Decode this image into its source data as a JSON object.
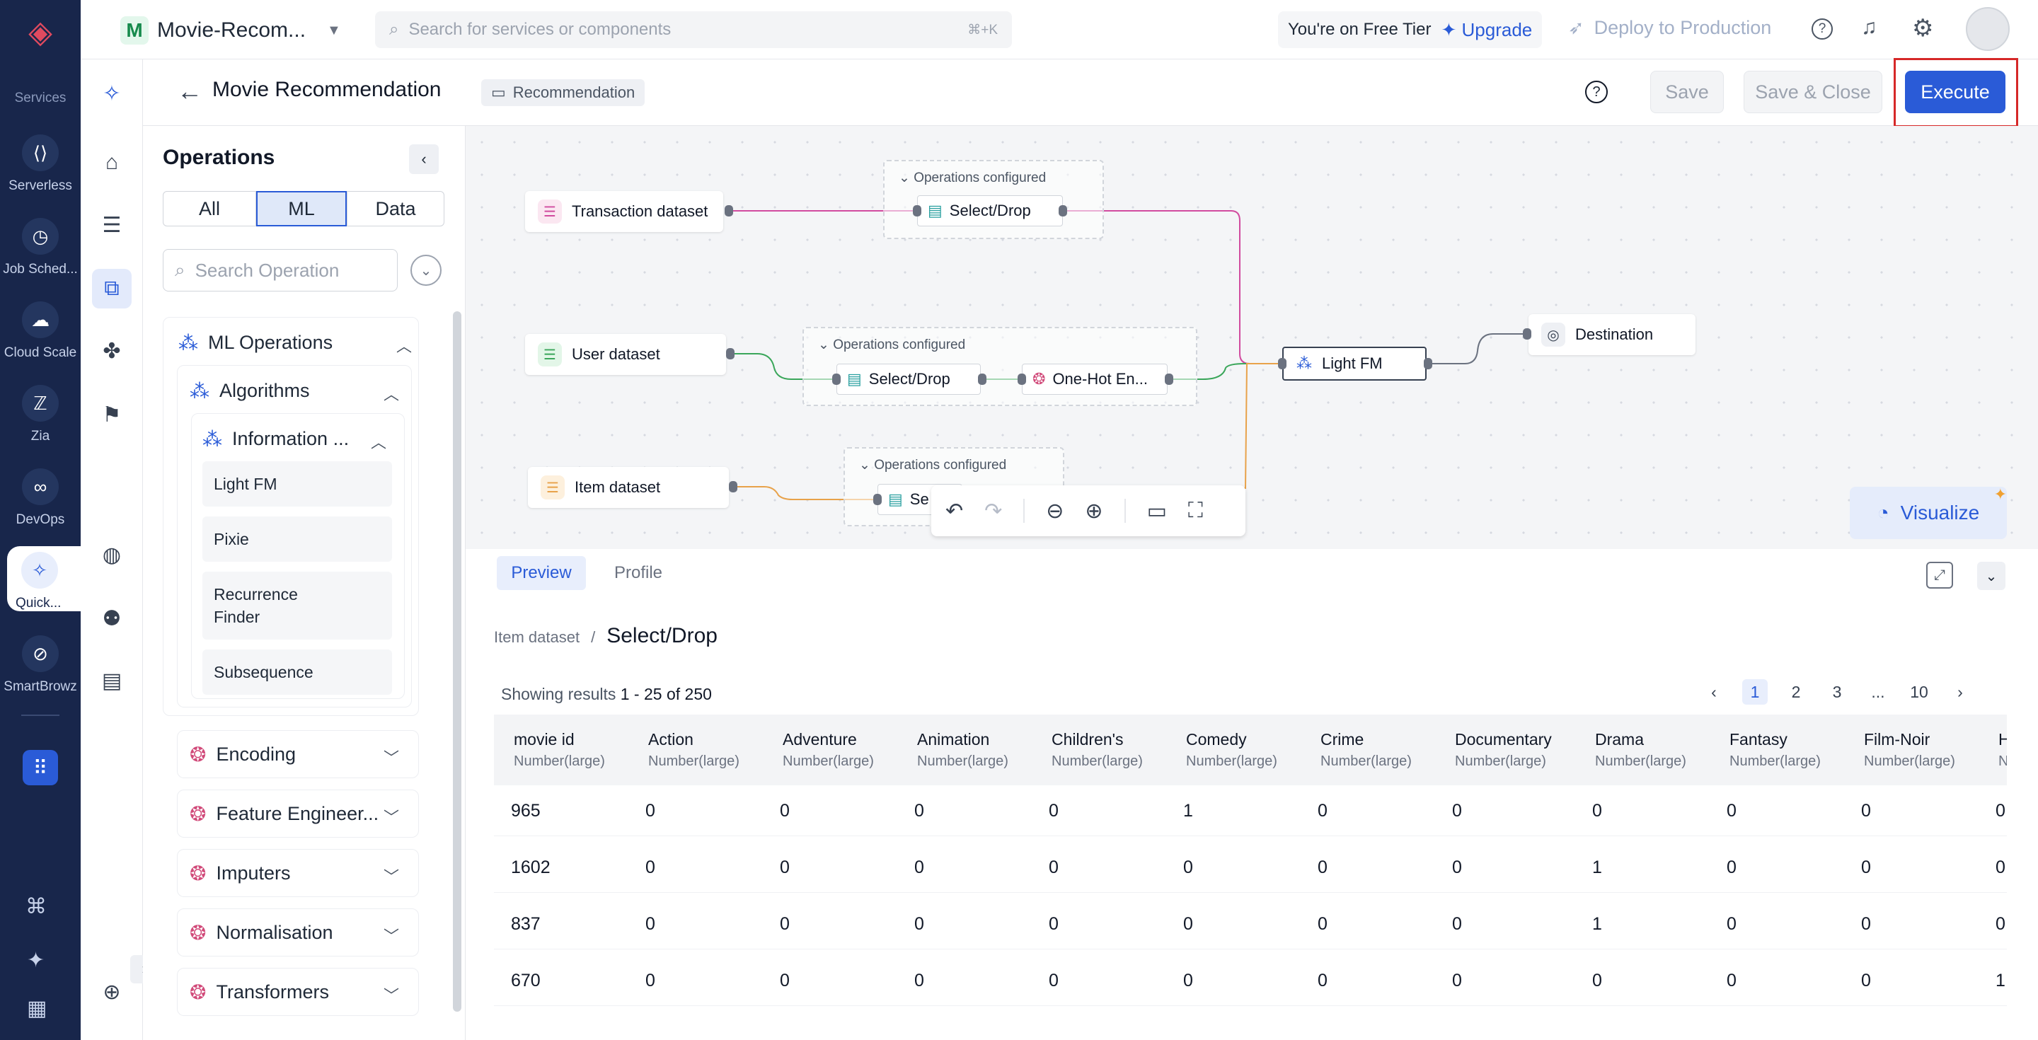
{
  "rail": {
    "section_label": "Services",
    "items": [
      {
        "label": "Serverless",
        "icon": "serverless-icon",
        "glyph": "⟨⟩"
      },
      {
        "label": "Job Sched...",
        "icon": "job-scheduler-icon",
        "glyph": "◷"
      },
      {
        "label": "Cloud Scale",
        "icon": "cloud-scale-icon",
        "glyph": "☁"
      },
      {
        "label": "Zia",
        "icon": "zia-icon",
        "glyph": "ℤ"
      },
      {
        "label": "DevOps",
        "icon": "devops-icon",
        "glyph": "∞"
      },
      {
        "label": "Quick...",
        "icon": "quickml-icon",
        "glyph": "✧"
      },
      {
        "label": "SmartBrowz",
        "icon": "smartbrowz-icon",
        "glyph": "⊘"
      }
    ]
  },
  "topbar": {
    "project_badge": "M",
    "project_name": "Movie-Recom...",
    "search_placeholder": "Search for services or components",
    "search_shortcut": "⌘+K",
    "tier_text": "You're on Free Tier",
    "upgrade_label": "Upgrade",
    "deploy_label": "Deploy to Production"
  },
  "header": {
    "title": "Movie Recommendation",
    "chip": "Recommendation",
    "save": "Save",
    "save_close": "Save & Close",
    "execute": "Execute"
  },
  "operations": {
    "title": "Operations",
    "segments": [
      "All",
      "ML",
      "Data"
    ],
    "search_placeholder": "Search Operation",
    "ml_operations": "ML Operations",
    "algorithms": "Algorithms",
    "information": "Information ...",
    "leaves": [
      "Light FM",
      "Pixie",
      "Recurrence Finder",
      "Subsequence"
    ],
    "groups": [
      "Encoding",
      "Feature Engineer...",
      "Imputers",
      "Normalisation",
      "Transformers"
    ]
  },
  "canvas": {
    "datasets": [
      "Transaction dataset",
      "User dataset",
      "Item dataset"
    ],
    "ops_configured": "Operations configured",
    "select_drop": "Select/Drop",
    "select_drop_short": "Se",
    "one_hot": "One-Hot En...",
    "light_fm": "Light FM",
    "destination": "Destination",
    "visualize": "Visualize",
    "colors": {
      "transaction": "#d14b9f",
      "user": "#3aa65a",
      "item": "#e8a24a",
      "output": "#6b7280"
    }
  },
  "preview": {
    "tabs": [
      "Preview",
      "Profile"
    ],
    "crumb_parent": "Item dataset",
    "crumb_sep": "/",
    "crumb_current": "Select/Drop",
    "results_prefix": "Showing results",
    "results_range": "1 - 25 of 250",
    "pages": [
      "1",
      "2",
      "3",
      "...",
      "10"
    ],
    "columns": [
      {
        "name": "movie id",
        "type": "Number(large)"
      },
      {
        "name": "Action",
        "type": "Number(large)"
      },
      {
        "name": "Adventure",
        "type": "Number(large)"
      },
      {
        "name": "Animation",
        "type": "Number(large)"
      },
      {
        "name": "Children's",
        "type": "Number(large)"
      },
      {
        "name": "Comedy",
        "type": "Number(large)"
      },
      {
        "name": "Crime",
        "type": "Number(large)"
      },
      {
        "name": "Documentary",
        "type": "Number(large)"
      },
      {
        "name": "Drama",
        "type": "Number(large)"
      },
      {
        "name": "Fantasy",
        "type": "Number(large)"
      },
      {
        "name": "Film-Noir",
        "type": "Number(large)"
      },
      {
        "name": "H",
        "type": "N"
      }
    ],
    "rows": [
      [
        "965",
        "0",
        "0",
        "0",
        "0",
        "1",
        "0",
        "0",
        "0",
        "0",
        "0",
        "0"
      ],
      [
        "1602",
        "0",
        "0",
        "0",
        "0",
        "0",
        "0",
        "0",
        "1",
        "0",
        "0",
        "0"
      ],
      [
        "837",
        "0",
        "0",
        "0",
        "0",
        "0",
        "0",
        "0",
        "1",
        "0",
        "0",
        "0"
      ],
      [
        "670",
        "0",
        "0",
        "0",
        "0",
        "0",
        "0",
        "0",
        "0",
        "0",
        "0",
        "1"
      ]
    ]
  }
}
